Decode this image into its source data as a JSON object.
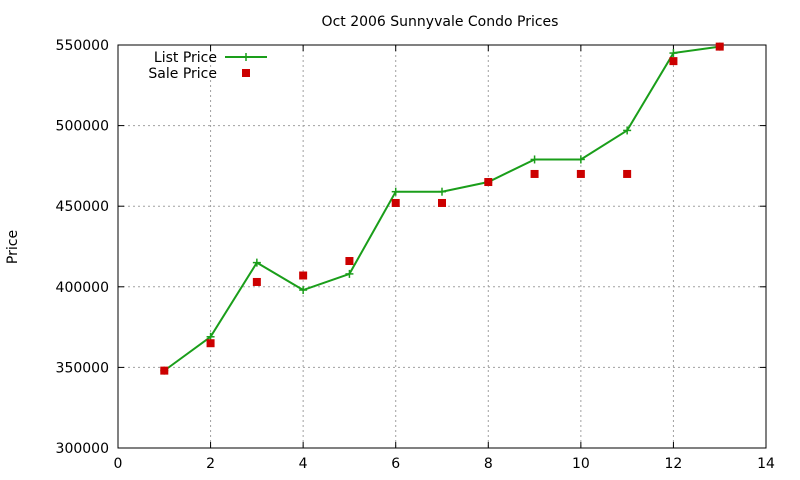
{
  "chart_data": {
    "type": "line",
    "title": "Oct 2006 Sunnyvale Condo Prices",
    "xlabel": "",
    "ylabel": "Price",
    "xlim": [
      0,
      14
    ],
    "ylim": [
      300000,
      550000
    ],
    "xticks": [
      0,
      2,
      4,
      6,
      8,
      10,
      12,
      14
    ],
    "yticks": [
      300000,
      350000,
      400000,
      450000,
      500000,
      550000
    ],
    "grid": true,
    "legend_position": "top-left",
    "series": [
      {
        "name": "List Price",
        "style": "linespoints",
        "marker": "plus",
        "color": "#1a9e1a",
        "x": [
          1,
          2,
          3,
          4,
          5,
          6,
          7,
          8,
          9,
          10,
          11,
          12,
          13
        ],
        "y": [
          348000,
          369000,
          415000,
          398000,
          408000,
          459000,
          459000,
          465000,
          479000,
          479000,
          497000,
          545000,
          549000
        ]
      },
      {
        "name": "Sale Price",
        "style": "points",
        "marker": "square",
        "color": "#cc0000",
        "x": [
          1,
          2,
          3,
          4,
          5,
          6,
          7,
          8,
          9,
          10,
          11,
          12,
          13
        ],
        "y": [
          348000,
          365000,
          403000,
          407000,
          416000,
          452000,
          452000,
          465000,
          470000,
          470000,
          470000,
          540000,
          549000
        ]
      }
    ]
  }
}
